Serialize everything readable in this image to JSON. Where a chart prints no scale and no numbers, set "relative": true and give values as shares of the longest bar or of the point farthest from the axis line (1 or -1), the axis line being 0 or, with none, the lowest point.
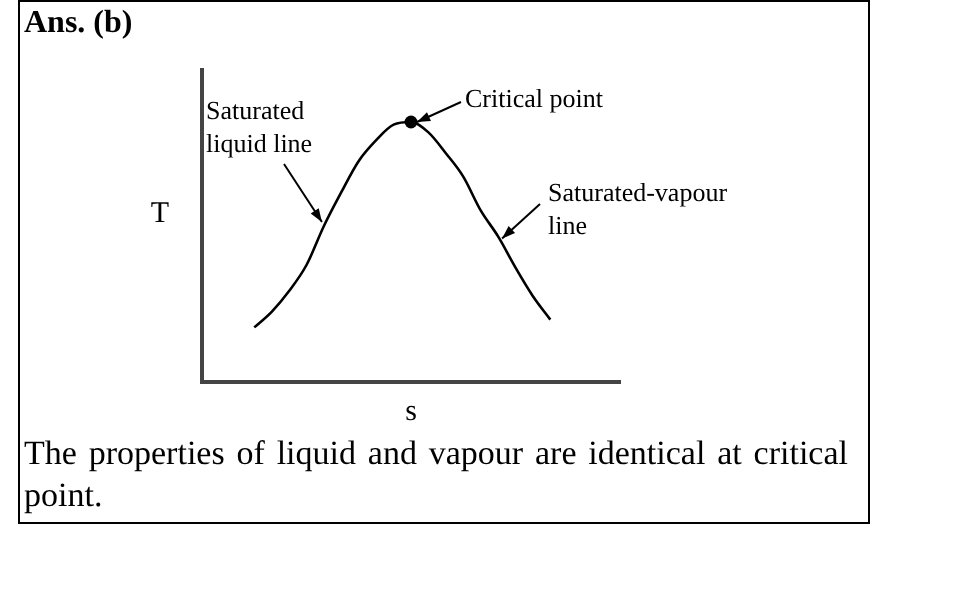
{
  "chart_data": {
    "type": "line",
    "title": "Ans. (b)",
    "xlabel": "s",
    "ylabel": "T",
    "relative": true,
    "categories": [
      null,
      null,
      null,
      null,
      null,
      null,
      null,
      null,
      null,
      null,
      null,
      null,
      null,
      null,
      null,
      null,
      null,
      null,
      null,
      null,
      null,
      null,
      null,
      null,
      null
    ],
    "series": [
      {
        "color": "#000000",
        "values": [
          null,
          null,
          null,
          0.21,
          0.27,
          0.35,
          0.45,
          0.6,
          0.73,
          0.85,
          0.93,
          0.99,
          1.0,
          0.96,
          0.88,
          0.79,
          0.66,
          0.56,
          0.44,
          0.33,
          0.24,
          null,
          null,
          null,
          null
        ]
      }
    ],
    "annotations": [
      "Critical point",
      "Saturated liquid line",
      "Saturated-vapour line",
      "The properties of liquid and vapour are identical at critical point."
    ],
    "legend": false,
    "grid": false
  }
}
